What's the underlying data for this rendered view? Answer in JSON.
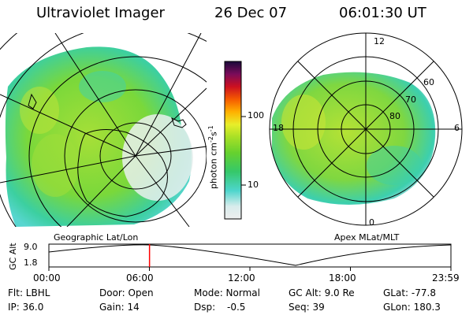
{
  "header": {
    "instrument": "Ultraviolet Imager",
    "date": "26 Dec 07",
    "time": "06:01:30 UT"
  },
  "left_map": {
    "label": "Geographic Lat/Lon"
  },
  "right_map": {
    "label": "Apex MLat/MLT",
    "mlt_labels": [
      "12",
      "18",
      "6",
      "0"
    ],
    "lat_labels": [
      "60",
      "70",
      "80"
    ]
  },
  "colorbar": {
    "unit": "photon cm",
    "sup1": "-2",
    "s": "s",
    "sup2": "-1",
    "ticks": [
      "100",
      "10"
    ]
  },
  "altitude_plot": {
    "axis_title": "GC Alt",
    "y_ticks": [
      "9.0",
      "1.8"
    ],
    "x_ticks": [
      "00:00",
      "06:00",
      "12:00",
      "18:00",
      "23:59"
    ],
    "current_time_fraction": 0.2503
  },
  "footer": {
    "flt": "Flt: LBHL",
    "ip": "IP: 36.0",
    "door": "Door: Open",
    "gain": "Gain: 14",
    "mode": "Mode: Normal",
    "dsp_label": "Dsp:",
    "dsp_value": "-0.5",
    "gc_alt": "GC Alt: 9.0 Re",
    "seq": "Seq: 39",
    "glat": "GLat: -77.8",
    "glon": "GLon: 180.3"
  }
}
